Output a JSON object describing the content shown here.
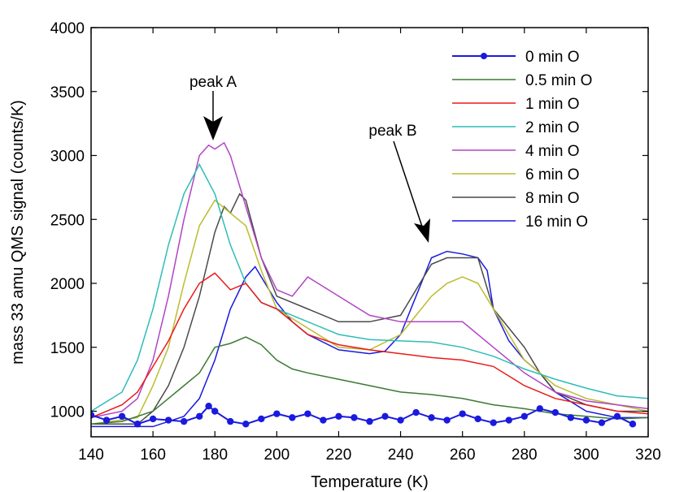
{
  "chart_data": {
    "type": "line",
    "title": "",
    "xlabel": "Temperature (K)",
    "ylabel": "mass 33 amu QMS signal (counts/K)",
    "xlim": [
      140,
      320
    ],
    "ylim": [
      800,
      4000
    ],
    "xticks": [
      140,
      160,
      180,
      200,
      220,
      240,
      260,
      280,
      300,
      320
    ],
    "yticks": [
      1000,
      1500,
      2000,
      2500,
      3000,
      3500,
      4000
    ],
    "grid": false,
    "legend_position": "top-right",
    "annotations": [
      {
        "text": "peak A",
        "x": 180,
        "y": 3100
      },
      {
        "text": "peak B",
        "x": 250,
        "y": 2300
      }
    ],
    "series": [
      {
        "name": "0 min O",
        "color": "#1a1adf",
        "marker": "circle",
        "x": [
          140,
          145,
          150,
          155,
          160,
          165,
          170,
          175,
          178,
          180,
          185,
          190,
          195,
          200,
          205,
          210,
          215,
          220,
          225,
          230,
          235,
          240,
          245,
          250,
          255,
          260,
          265,
          270,
          275,
          280,
          285,
          290,
          295,
          300,
          305,
          310,
          315
        ],
        "y": [
          970,
          930,
          960,
          900,
          940,
          930,
          920,
          960,
          1040,
          1000,
          920,
          900,
          940,
          980,
          950,
          980,
          930,
          960,
          950,
          920,
          960,
          930,
          990,
          950,
          930,
          980,
          940,
          910,
          930,
          960,
          1020,
          990,
          950,
          930,
          910,
          960,
          900
        ]
      },
      {
        "name": "0.5 min O",
        "color": "#3a7a32",
        "marker": "none",
        "x": [
          140,
          150,
          160,
          165,
          170,
          175,
          180,
          185,
          190,
          195,
          200,
          205,
          210,
          220,
          230,
          240,
          250,
          260,
          270,
          280,
          290,
          300,
          310,
          320
        ],
        "y": [
          900,
          920,
          1000,
          1100,
          1200,
          1300,
          1500,
          1530,
          1580,
          1520,
          1400,
          1330,
          1300,
          1250,
          1200,
          1150,
          1130,
          1100,
          1050,
          1020,
          980,
          960,
          940,
          950
        ]
      },
      {
        "name": "1 min O",
        "color": "#ea1a1a",
        "marker": "none",
        "x": [
          140,
          150,
          155,
          160,
          165,
          170,
          175,
          180,
          185,
          190,
          195,
          200,
          205,
          210,
          220,
          230,
          240,
          250,
          260,
          270,
          280,
          290,
          300,
          310,
          320
        ],
        "y": [
          950,
          1050,
          1150,
          1350,
          1550,
          1800,
          2000,
          2080,
          1950,
          2000,
          1850,
          1800,
          1700,
          1600,
          1520,
          1480,
          1450,
          1420,
          1400,
          1350,
          1200,
          1100,
          1050,
          1000,
          980
        ]
      },
      {
        "name": "2 min O",
        "color": "#2fbcb8",
        "marker": "none",
        "x": [
          140,
          150,
          155,
          160,
          165,
          170,
          175,
          180,
          185,
          190,
          195,
          200,
          205,
          210,
          220,
          230,
          240,
          250,
          260,
          270,
          280,
          290,
          300,
          310,
          320
        ],
        "y": [
          1000,
          1150,
          1400,
          1800,
          2300,
          2700,
          2930,
          2700,
          2300,
          2000,
          1850,
          1800,
          1750,
          1700,
          1600,
          1560,
          1550,
          1540,
          1500,
          1430,
          1330,
          1250,
          1180,
          1120,
          1100
        ]
      },
      {
        "name": "4 min O",
        "color": "#b245c4",
        "marker": "none",
        "x": [
          140,
          150,
          155,
          160,
          165,
          170,
          175,
          178,
          180,
          183,
          185,
          190,
          195,
          200,
          205,
          210,
          220,
          230,
          240,
          250,
          260,
          270,
          280,
          290,
          300,
          310,
          320
        ],
        "y": [
          950,
          1000,
          1100,
          1400,
          1900,
          2500,
          3000,
          3080,
          3050,
          3100,
          3000,
          2600,
          2200,
          1950,
          1900,
          2050,
          1900,
          1750,
          1700,
          1700,
          1700,
          1500,
          1300,
          1150,
          1080,
          1050,
          1020
        ]
      },
      {
        "name": "6 min O",
        "color": "#bcbc2e",
        "marker": "none",
        "x": [
          140,
          155,
          160,
          165,
          170,
          175,
          180,
          185,
          190,
          195,
          200,
          210,
          220,
          230,
          240,
          245,
          250,
          255,
          260,
          265,
          270,
          275,
          280,
          290,
          300,
          310,
          320
        ],
        "y": [
          900,
          950,
          1200,
          1500,
          2000,
          2450,
          2650,
          2550,
          2450,
          2100,
          1800,
          1650,
          1500,
          1480,
          1600,
          1750,
          1900,
          2000,
          2050,
          2000,
          1800,
          1600,
          1400,
          1200,
          1100,
          1050,
          1000
        ]
      },
      {
        "name": "8 min O",
        "color": "#4a4a4a",
        "marker": "none",
        "x": [
          140,
          155,
          160,
          165,
          170,
          175,
          180,
          183,
          185,
          188,
          190,
          195,
          200,
          210,
          220,
          230,
          240,
          245,
          250,
          255,
          260,
          265,
          270,
          275,
          280,
          285,
          290,
          300,
          310,
          320
        ],
        "y": [
          900,
          900,
          1000,
          1200,
          1500,
          1900,
          2400,
          2600,
          2550,
          2700,
          2650,
          2200,
          1900,
          1800,
          1700,
          1700,
          1750,
          1950,
          2150,
          2200,
          2200,
          2200,
          1800,
          1650,
          1500,
          1300,
          1150,
          1050,
          1000,
          1000
        ]
      },
      {
        "name": "16 min O",
        "color": "#1a1adf",
        "marker": "none",
        "x": [
          140,
          160,
          170,
          175,
          180,
          185,
          190,
          193,
          195,
          200,
          205,
          210,
          220,
          230,
          235,
          240,
          245,
          250,
          255,
          260,
          265,
          268,
          270,
          275,
          280,
          285,
          290,
          300,
          310,
          320
        ],
        "y": [
          880,
          880,
          960,
          1100,
          1400,
          1800,
          2050,
          2130,
          2050,
          1850,
          1700,
          1600,
          1480,
          1450,
          1470,
          1600,
          1900,
          2200,
          2250,
          2230,
          2200,
          2100,
          1800,
          1550,
          1400,
          1300,
          1150,
          1000,
          950,
          950
        ]
      }
    ]
  }
}
